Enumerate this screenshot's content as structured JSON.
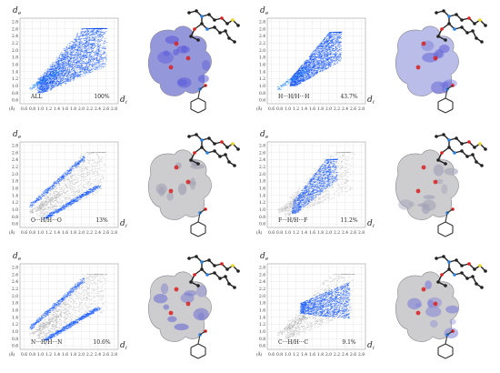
{
  "figure": {
    "axis_labels": {
      "y": "d",
      "y_sub": "e",
      "x": "d",
      "x_sub": "i",
      "unit": "(Å)"
    },
    "y_ticks": [
      "0.6",
      "0.8",
      "1.0",
      "1.2",
      "1.4",
      "1.6",
      "1.8",
      "2.0",
      "2.2",
      "2.4",
      "2.6",
      "2.8"
    ],
    "x_ticks": [
      "0.6",
      "0.8",
      "1.0",
      "1.2",
      "1.4",
      "1.6",
      "1.8",
      "2.0",
      "2.2",
      "2.4",
      "2.6",
      "2.8"
    ],
    "plots": [
      {
        "contact": "ALL",
        "percent": "100%"
      },
      {
        "contact": "H···H/H···H",
        "percent": "43.7%"
      },
      {
        "contact": "O···H/H···O",
        "percent": "13%"
      },
      {
        "contact": "F···H/H···F",
        "percent": "11.2%"
      },
      {
        "contact": "N···H/H···N",
        "percent": "10.6%"
      },
      {
        "contact": "C···H/H···C",
        "percent": "9.1%"
      }
    ],
    "colors": {
      "fingerprint": "#1a5cff",
      "background_scatter": "#a8a8a8",
      "surface": "#c9c9cc",
      "surface_blue": "#6a6ad8",
      "red_spot": "#d82020"
    }
  }
}
